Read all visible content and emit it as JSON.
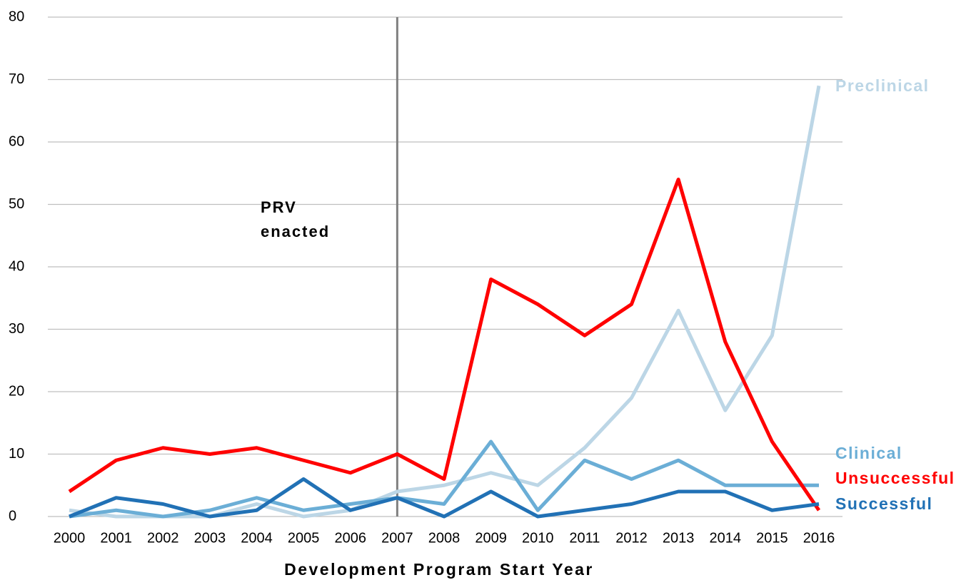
{
  "chart_data": {
    "type": "line",
    "x_label": "Development Program Start Year",
    "categories": [
      "2000",
      "2001",
      "2002",
      "2003",
      "2004",
      "2005",
      "2006",
      "2007",
      "2008",
      "2009",
      "2010",
      "2011",
      "2012",
      "2013",
      "2014",
      "2015",
      "2016"
    ],
    "series": [
      {
        "name": "Preclinical",
        "color": "#bcd6e6",
        "values": [
          1,
          0,
          0,
          0,
          2,
          0,
          1,
          4,
          5,
          7,
          5,
          11,
          19,
          33,
          17,
          29,
          69
        ]
      },
      {
        "name": "Clinical",
        "color": "#6baed6",
        "values": [
          0,
          1,
          0,
          1,
          3,
          1,
          2,
          3,
          2,
          12,
          1,
          9,
          6,
          9,
          5,
          5,
          5
        ]
      },
      {
        "name": "Unsuccessful",
        "color": "#ff0000",
        "values": [
          4,
          9,
          11,
          10,
          11,
          9,
          7,
          10,
          6,
          38,
          34,
          29,
          34,
          54,
          28,
          12,
          1
        ]
      },
      {
        "name": "Successful",
        "color": "#2171b5",
        "values": [
          0,
          3,
          2,
          0,
          1,
          6,
          1,
          3,
          0,
          4,
          0,
          1,
          2,
          4,
          4,
          1,
          2
        ]
      }
    ],
    "annotation": {
      "lines": [
        "PRV",
        "enacted"
      ],
      "category": "2007",
      "color": "#808080"
    },
    "ylim": [
      0,
      80
    ],
    "yticks": [
      0,
      10,
      20,
      30,
      40,
      50,
      60,
      70,
      80
    ],
    "grid": true
  }
}
